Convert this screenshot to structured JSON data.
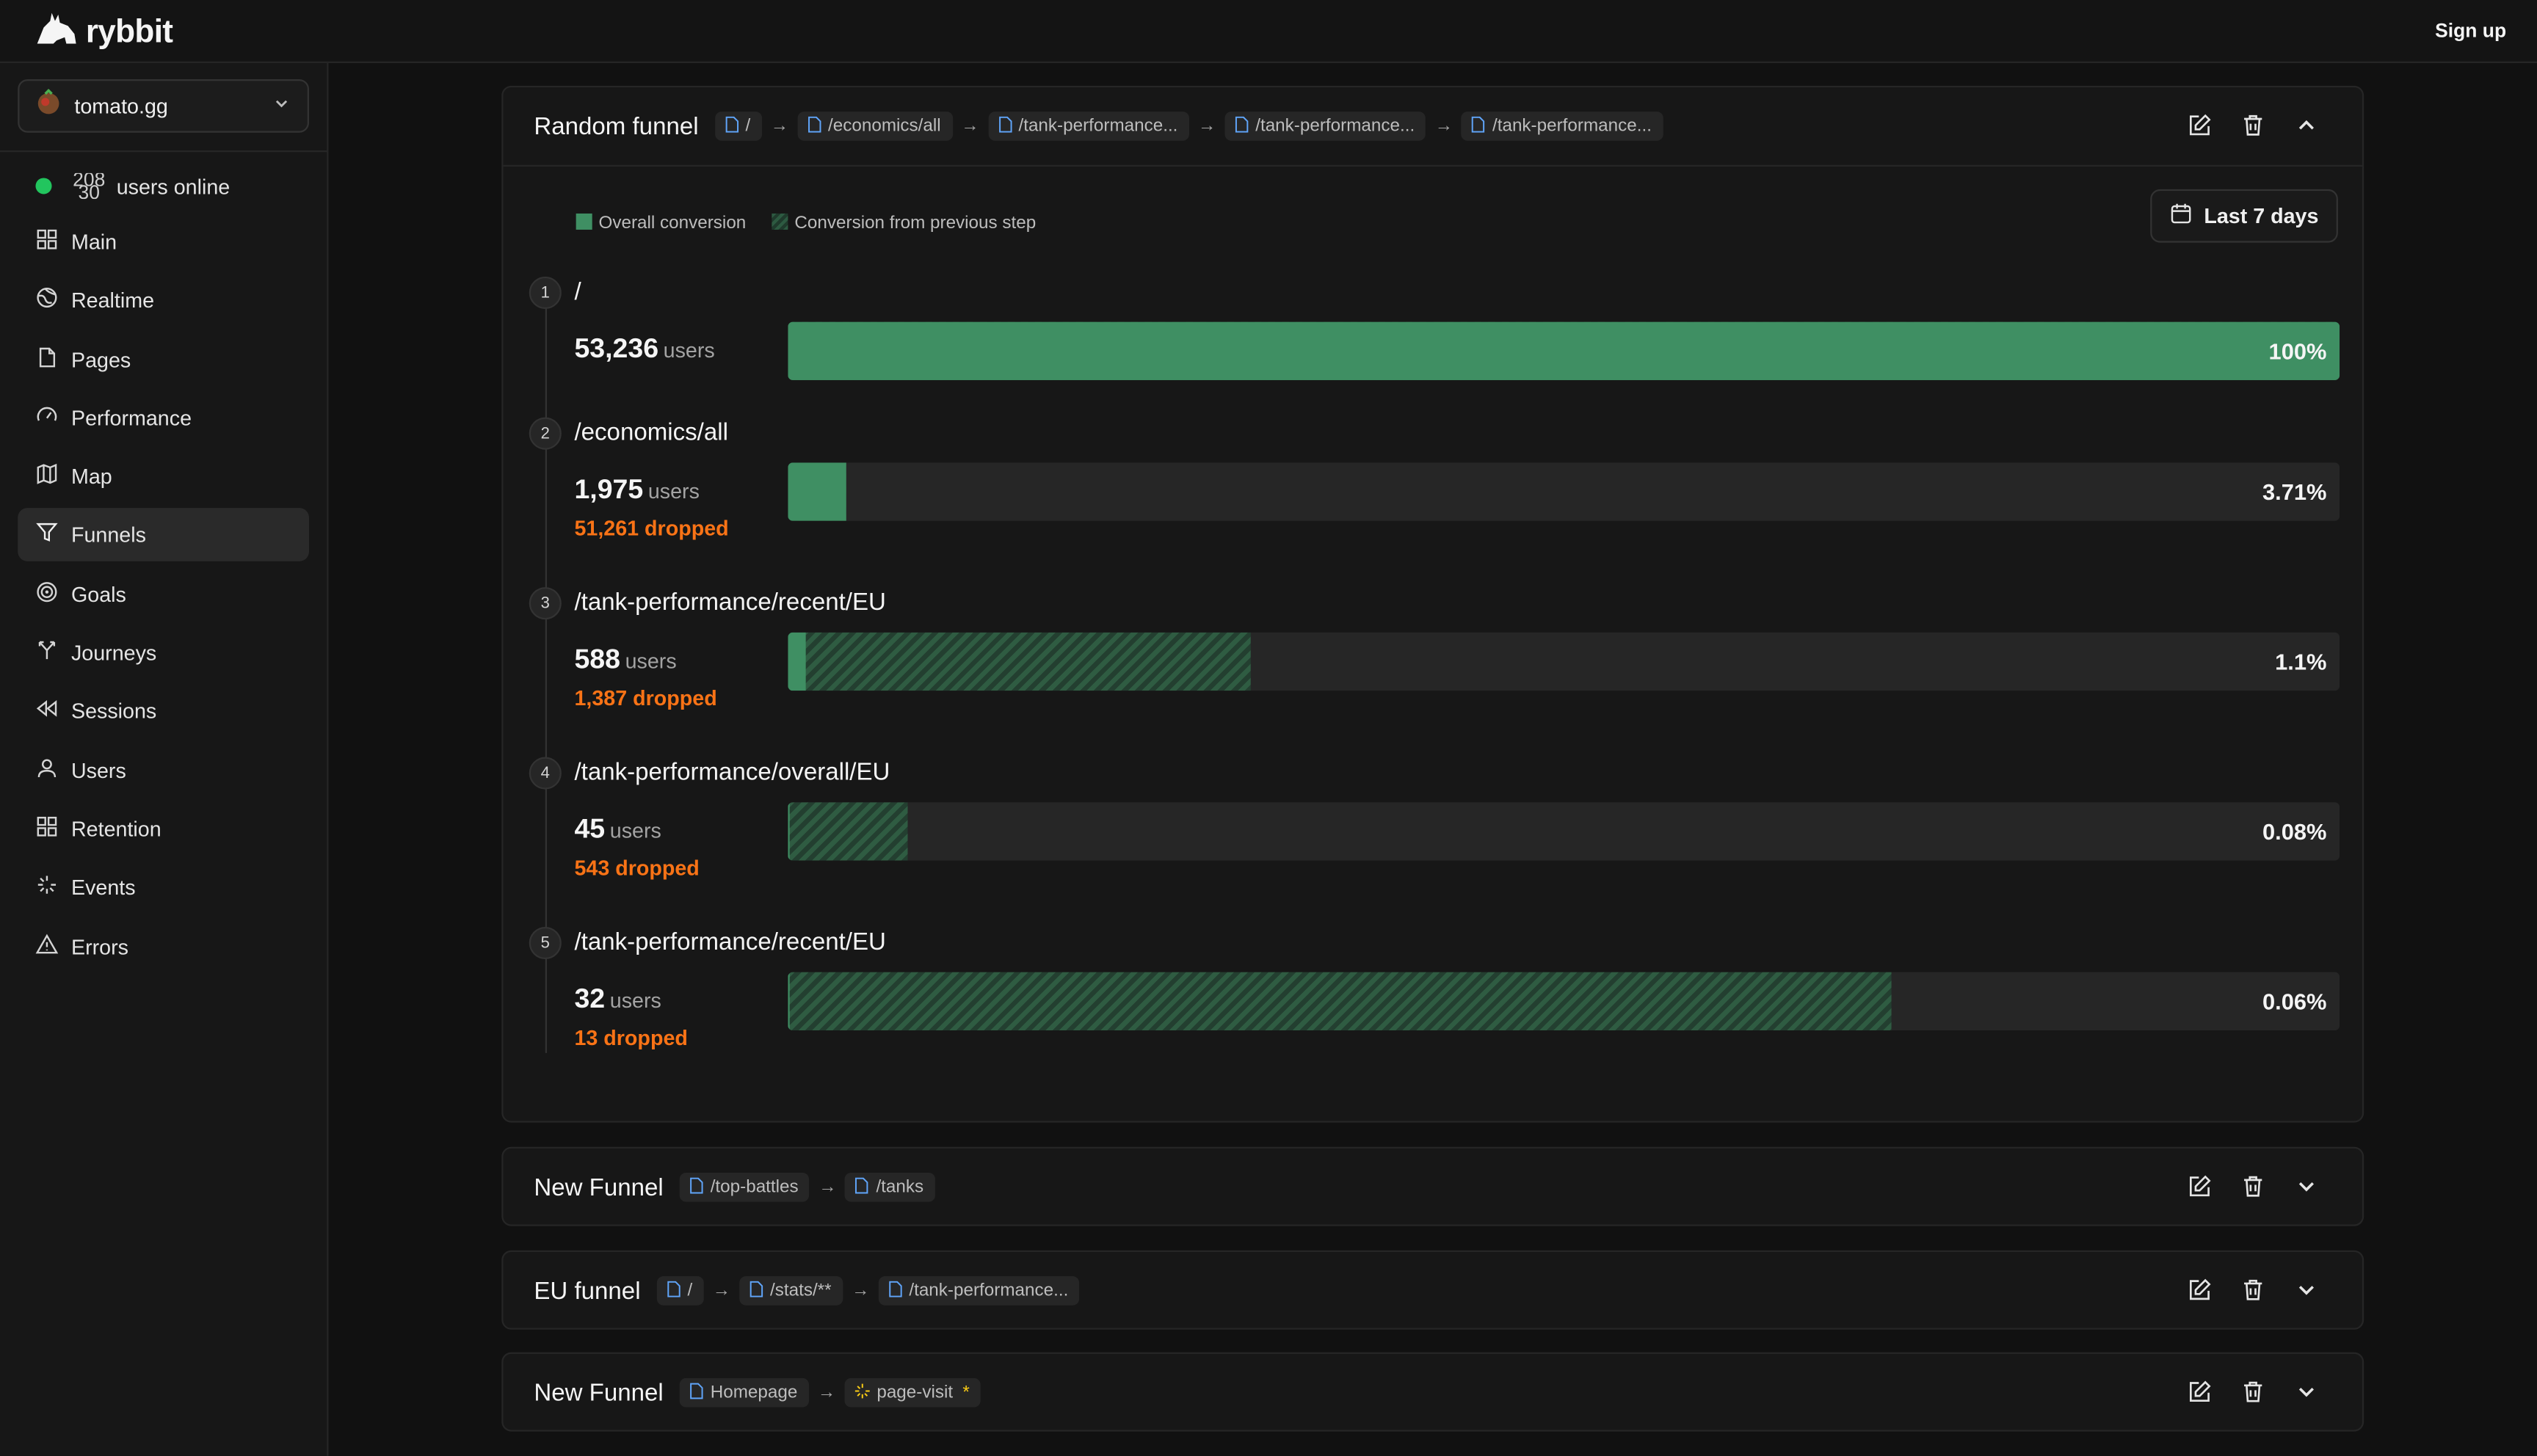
{
  "app": {
    "name": "rybbit",
    "signup_label": "Sign up"
  },
  "site": {
    "name": "tomato.gg"
  },
  "online": {
    "count_top": "208",
    "count_bottom": "30",
    "label": "users online"
  },
  "sidebar": {
    "items": [
      {
        "label": "Main",
        "icon": "grid-icon"
      },
      {
        "label": "Realtime",
        "icon": "globe-icon"
      },
      {
        "label": "Pages",
        "icon": "file-icon"
      },
      {
        "label": "Performance",
        "icon": "gauge-icon"
      },
      {
        "label": "Map",
        "icon": "map-icon"
      },
      {
        "label": "Funnels",
        "icon": "funnel-icon",
        "active": true
      },
      {
        "label": "Goals",
        "icon": "target-icon"
      },
      {
        "label": "Journeys",
        "icon": "split-icon"
      },
      {
        "label": "Sessions",
        "icon": "rewind-icon"
      },
      {
        "label": "Users",
        "icon": "user-icon"
      },
      {
        "label": "Retention",
        "icon": "grid-icon"
      },
      {
        "label": "Events",
        "icon": "sparkle-icon"
      },
      {
        "label": "Errors",
        "icon": "warning-icon"
      }
    ]
  },
  "funnels": [
    {
      "title": "Random funnel",
      "expanded": true,
      "chips": [
        "/",
        "/economics/all",
        "/tank-performance...",
        "/tank-performance...",
        "/tank-performance..."
      ]
    },
    {
      "title": "New Funnel",
      "expanded": false,
      "chips": [
        "/top-battles",
        "/tanks"
      ]
    },
    {
      "title": "EU funnel",
      "expanded": false,
      "chips": [
        "/",
        "/stats/**",
        "/tank-performance..."
      ]
    },
    {
      "title": "New Funnel",
      "expanded": false,
      "chips": [
        "Homepage",
        "page-visit"
      ],
      "event_chip_index": 1,
      "event_marker": "*"
    }
  ],
  "legend": {
    "overall": "Overall conversion",
    "previous": "Conversion from previous step"
  },
  "date_range": {
    "label": "Last 7 days"
  },
  "users_unit": "users",
  "steps": [
    {
      "num": "1",
      "path": "/",
      "users": "53,236",
      "dropped": "",
      "pct_label": "100%",
      "overall_pct": 100,
      "prev_pct": 100
    },
    {
      "num": "2",
      "path": "/economics/all",
      "users": "1,975",
      "dropped": "51,261 dropped",
      "pct_label": "3.71%",
      "overall_pct": 3.71,
      "prev_pct": 3.71
    },
    {
      "num": "3",
      "path": "/tank-performance/recent/EU",
      "users": "588",
      "dropped": "1,387 dropped",
      "pct_label": "1.1%",
      "overall_pct": 1.1,
      "prev_pct": 29.8
    },
    {
      "num": "4",
      "path": "/tank-performance/overall/EU",
      "users": "45",
      "dropped": "543 dropped",
      "pct_label": "0.08%",
      "overall_pct": 0.08,
      "prev_pct": 7.7
    },
    {
      "num": "5",
      "path": "/tank-performance/recent/EU",
      "users": "32",
      "dropped": "13 dropped",
      "pct_label": "0.06%",
      "overall_pct": 0.06,
      "prev_pct": 71.1
    }
  ],
  "colors": {
    "accent_green": "#3f8f63",
    "dropped_orange": "#f97316",
    "online_green": "#22c55e"
  }
}
